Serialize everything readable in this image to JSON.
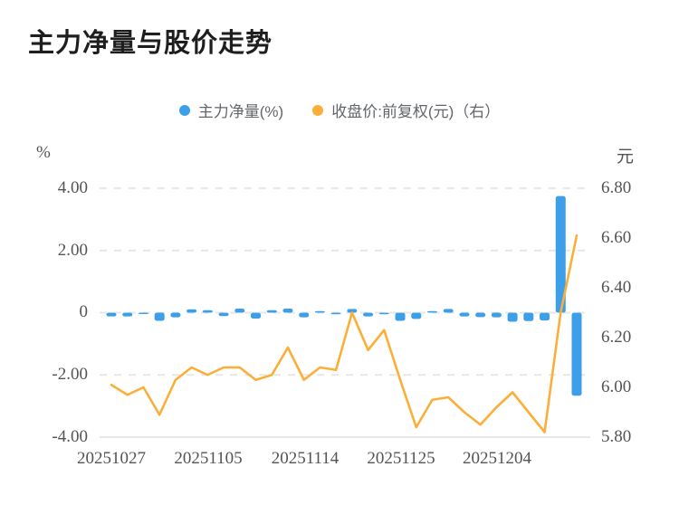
{
  "title": "主力净量与股价走势",
  "legend": [
    {
      "label": "主力净量(%)",
      "color": "#3d9fe8"
    },
    {
      "label": "收盘价:前复权(元)（右）",
      "color": "#fbae38"
    }
  ],
  "axis_units": {
    "left": "%",
    "right": "元"
  },
  "chart_data": {
    "type": "bar",
    "subtype": "bar+line dual-axis combo",
    "title": "主力净量与股价走势",
    "n_points": 30,
    "x_tick_labels": [
      "20251027",
      "20251105",
      "20251114",
      "20251125",
      "20251204"
    ],
    "x_tick_indices": [
      0,
      6,
      12,
      18,
      24
    ],
    "left_axis": {
      "unit": "%",
      "range": [
        -4.0,
        4.0
      ],
      "ticks": [
        4.0,
        2.0,
        0,
        -2.0,
        -4.0
      ],
      "tick_labels": [
        "4.00",
        "2.00",
        "0",
        "-2.00",
        "-4.00"
      ]
    },
    "right_axis": {
      "unit": "元",
      "range": [
        5.8,
        6.8
      ],
      "ticks": [
        6.8,
        6.6,
        6.4,
        6.2,
        6.0,
        5.8
      ],
      "tick_labels": [
        "6.80",
        "6.60",
        "6.40",
        "6.20",
        "6.00",
        "5.80"
      ]
    },
    "grid": "horizontal dashed lines at left-axis ticks, legend top center",
    "series": [
      {
        "name": "主力净量(%)",
        "type": "bar",
        "axis": "left",
        "color": "#3d9fe8",
        "values": [
          -0.12,
          -0.12,
          -0.02,
          -0.26,
          -0.15,
          0.11,
          0.08,
          -0.11,
          0.13,
          -0.19,
          0.08,
          0.13,
          -0.15,
          0.05,
          -0.05,
          0.12,
          -0.12,
          -0.05,
          -0.26,
          -0.2,
          0.05,
          0.12,
          -0.12,
          -0.14,
          -0.15,
          -0.29,
          -0.27,
          -0.25,
          3.75,
          -2.67
        ]
      },
      {
        "name": "收盘价:前复权(元)（右）",
        "type": "line",
        "axis": "right",
        "color": "#fbae38",
        "values": [
          6.01,
          5.97,
          6.0,
          5.89,
          6.03,
          6.08,
          6.05,
          6.08,
          6.08,
          6.03,
          6.05,
          6.16,
          6.03,
          6.08,
          6.07,
          6.3,
          6.15,
          6.23,
          6.03,
          5.84,
          5.95,
          5.96,
          5.9,
          5.85,
          5.92,
          5.98,
          5.9,
          5.82,
          6.3,
          6.61
        ]
      }
    ]
  }
}
